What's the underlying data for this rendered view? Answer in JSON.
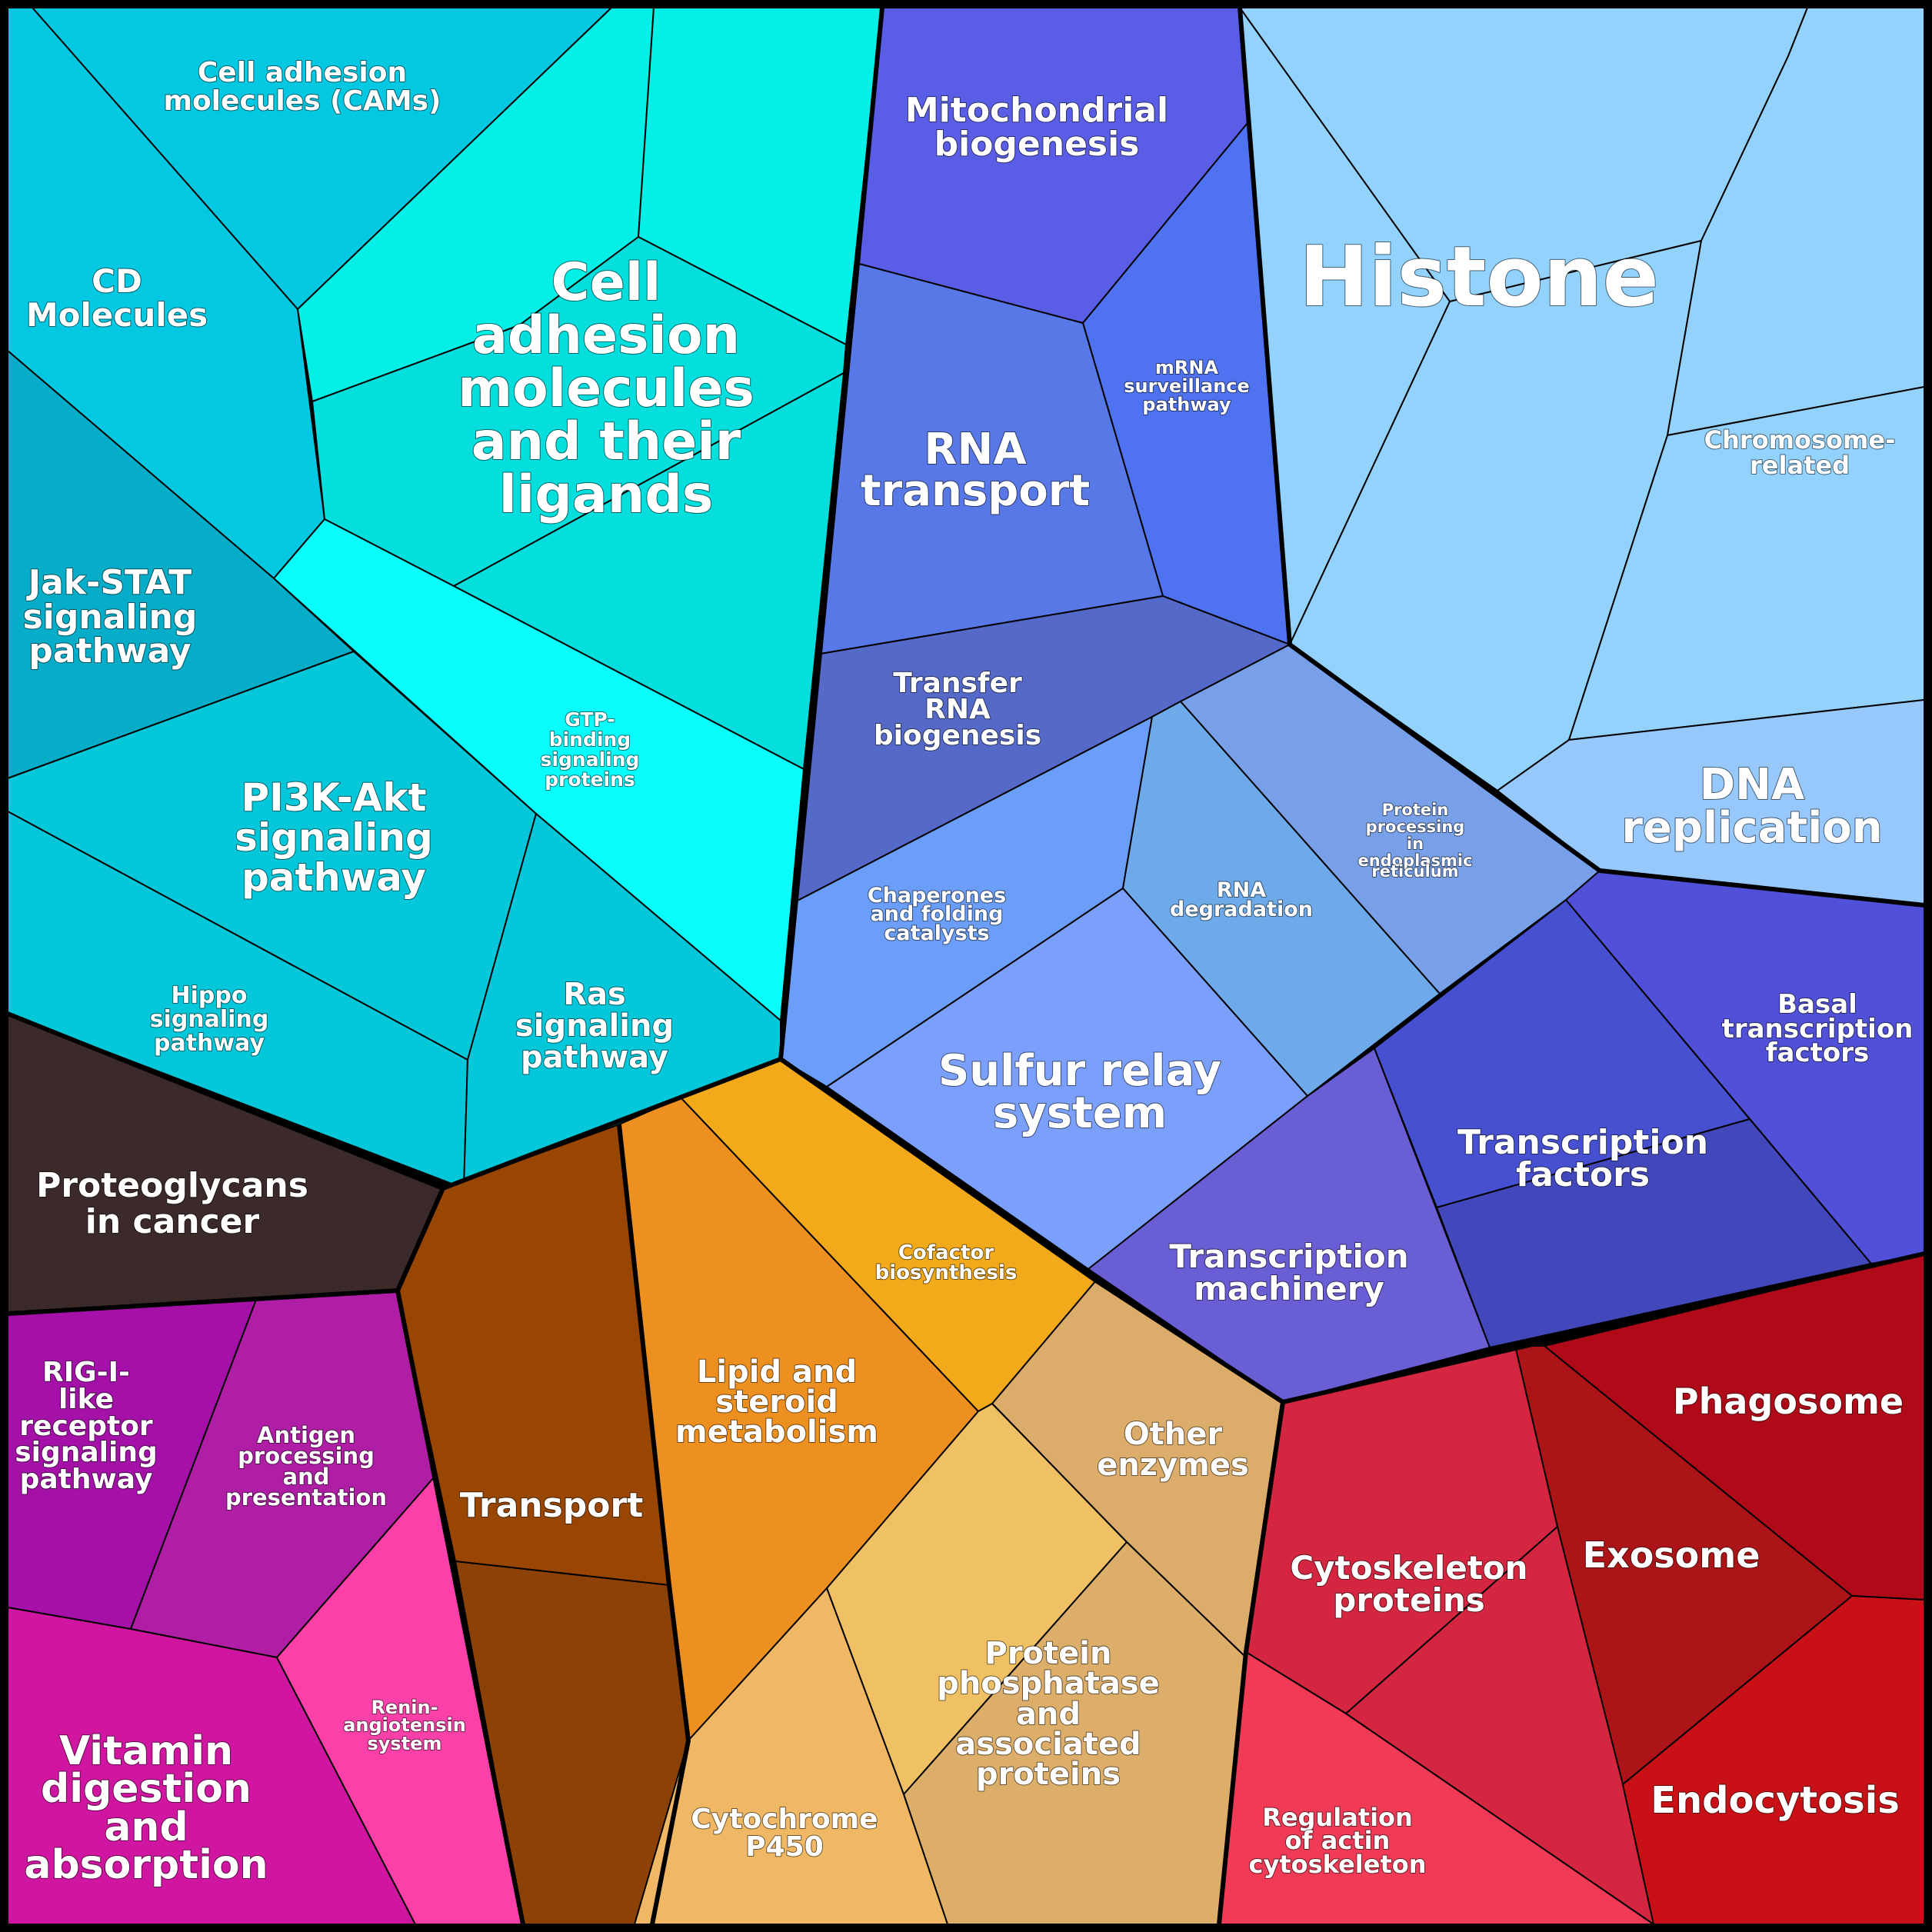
{
  "labels": {
    "cams": "Cell adhesion molecules (CAMs)",
    "cd_molecules": "CD Molecules",
    "cell_adhesion_ligands": "Cell adhesion molecules and their ligands",
    "jak_stat": "Jak-STAT signaling pathway",
    "gtp_binding": "GTP-binding signaling proteins",
    "pi3k_akt": "PI3K-Akt signaling pathway",
    "hippo": "Hippo signaling pathway",
    "ras": "Ras signaling pathway",
    "mito_biogenesis": "Mitochondrial biogenesis",
    "mrna_surveillance": "mRNA surveillance pathway",
    "rna_transport": "RNA transport",
    "trna_biogenesis": "Transfer RNA biogenesis",
    "histone": "Histone",
    "chromosome_related": "Chromosome-related",
    "dna_replication": "DNA replication",
    "protein_processing_er": "Protein processing in endoplasmic reticulum",
    "chaperones": "Chaperones and folding catalysts",
    "rna_degradation": "RNA degradation",
    "sulfur_relay": "Sulfur relay system",
    "basal_tf": "Basal transcription factors",
    "transcription_factors": "Transcription factors",
    "transcription_machinery": "Transcription machinery",
    "proteoglycans": "Proteoglycans in cancer",
    "transport": "Transport",
    "lipid_steroid": "Lipid and steroid metabolism",
    "cofactor": "Cofactor biosynthesis",
    "other_enzymes": "Other enzymes",
    "protein_phosphatase": "Protein phosphatase and associated proteins",
    "cytochrome": "Cytochrome P450",
    "rig_i": "RIG-I-like receptor signaling pathway",
    "antigen": "Antigen processing and presentation",
    "renin": "Renin-angiotensin system",
    "vitamin": "Vitamin digestion and absorption",
    "phagosome": "Phagosome",
    "exosome": "Exosome",
    "cytoskeleton": "Cytoskeleton proteins",
    "actin": "Regulation of actin cytoskeleton",
    "endocytosis": "Endocytosis"
  },
  "colors": {
    "background_border": "#000000",
    "cyan_cams": "#03c8e2",
    "cyan_ligands": "#04dedd",
    "cyan_bright": "#04f0e6",
    "cyan_gtp": "#0afdfd",
    "teal_jak": "#05adc8",
    "teal_pi3k": "#04c8d9",
    "purple_mito": "#5a5ee6",
    "blue_mrna": "#4e72f0",
    "blue_rna_transport": "#5778e6",
    "blue_trna": "#5569c8",
    "lightblue_histone": "#92d2fc",
    "lightblue_dna": "#96c8fc",
    "blue_chaperones": "#6a9ef8",
    "blue_rna_deg": "#6eaaea",
    "blue_er": "#78a0e8",
    "blue_sulfur": "#7aa0fc",
    "indigo_basal": "#5050d8",
    "indigo_tf": "#4650d0",
    "indigo_tf_low": "#4248bc",
    "violet_machinery": "#6a5ed4",
    "brown_dark": "#3c2a2a",
    "brown_transport": "#984602",
    "brown_transport_low": "#8c4206",
    "orange_lipid": "#ee9020",
    "orange_cofactor": "#f2aa1a",
    "tan_other": "#dcac6a",
    "tan_phosphatase": "#f0c064",
    "tan_phosphatase_low": "#dcae6a",
    "tan_cytochrome": "#f0b864",
    "purple_rig": "#a410a8",
    "purple_antigen": "#b01ea6",
    "magenta_vitamin": "#d016a0",
    "pink_renin": "#fc40aa",
    "red_phagosome": "#b00a18",
    "red_exosome": "#ac1418",
    "red_cytoskeleton": "#d42640",
    "red_actin": "#f03a56",
    "red_endocytosis": "#c81016"
  }
}
